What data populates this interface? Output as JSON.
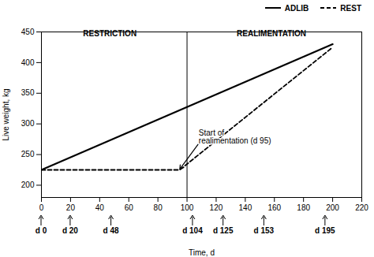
{
  "chart_data": {
    "type": "line",
    "xlabel": "Time, d",
    "ylabel": "Live weight, kg",
    "xlim": [
      0,
      220
    ],
    "ylim": [
      180,
      450
    ],
    "xticks": [
      0,
      20,
      40,
      60,
      80,
      100,
      120,
      140,
      160,
      180,
      200,
      220
    ],
    "yticks": [
      200,
      250,
      300,
      350,
      400,
      450
    ],
    "color": "#000000",
    "grid": false,
    "legend": "top",
    "series": [
      {
        "name": "ADLIB",
        "x": [
          0,
          200
        ],
        "values": [
          225,
          430
        ],
        "line_style": "solid"
      },
      {
        "name": "REST",
        "x": [
          0,
          95,
          200
        ],
        "values": [
          225,
          225,
          425
        ],
        "line_style": "dashed"
      }
    ],
    "vlines": [
      100
    ],
    "annotations": [
      {
        "text": "RESTRICTION",
        "x": 47,
        "y": 443
      },
      {
        "text": "REALIMENTATION",
        "x": 158,
        "y": 443
      },
      {
        "text": "Start of\nrealimentation (d 95)",
        "x": 95,
        "y": 226,
        "text_x": 108,
        "text_y": 268
      }
    ],
    "x_markers": [
      {
        "value": 0,
        "label": "d 0"
      },
      {
        "value": 20,
        "label": "d 20"
      },
      {
        "value": 48,
        "label": "d 48"
      },
      {
        "value": 104,
        "label": "d 104"
      },
      {
        "value": 125,
        "label": "d 125"
      },
      {
        "value": 153,
        "label": "d 153"
      },
      {
        "value": 195,
        "label": "d 195"
      }
    ]
  }
}
